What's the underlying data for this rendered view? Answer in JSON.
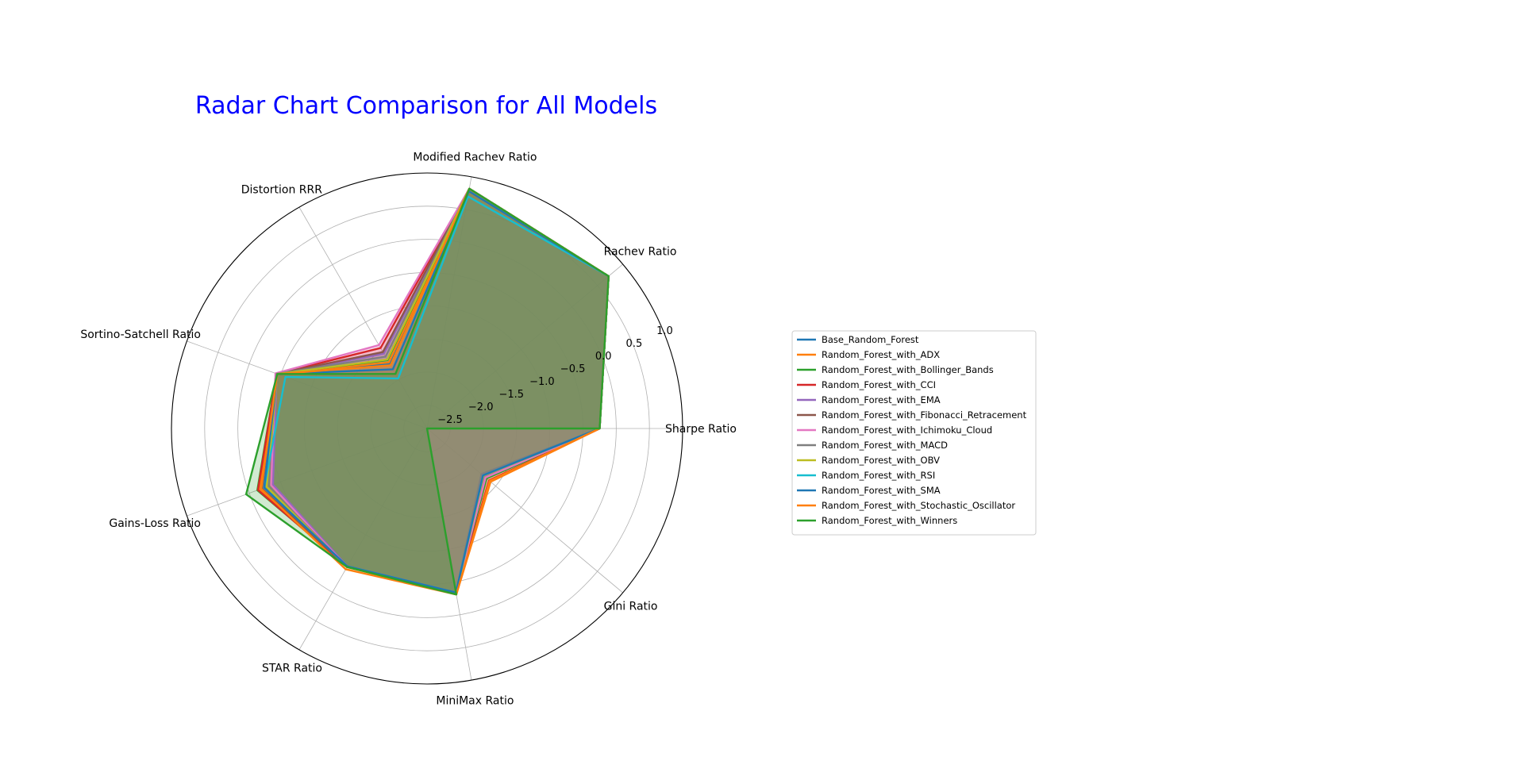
{
  "chart_data": {
    "type": "radar",
    "title": "Radar Chart Comparison for All Models",
    "title_color": "#0000ff",
    "axes": [
      "Sharpe Ratio",
      "Rachev Ratio",
      "Modified Rachev Ratio",
      "Distortion RRR",
      "Sortino-Satchell Ratio",
      "Gains-Loss Ratio",
      "STAR Ratio",
      "MiniMax Ratio",
      "Gini Ratio"
    ],
    "radial_ticks": [
      -2.5,
      -2.0,
      -1.5,
      -1.0,
      -0.5,
      0.0,
      0.5,
      1.0
    ],
    "radial_tick_labels": [
      "−2.5",
      "−2.0",
      "−1.5",
      "−1.0",
      "−0.5",
      "0.0",
      "0.5",
      "1.0"
    ],
    "rlim": [
      -2.85,
      1.0
    ],
    "grid": true,
    "legend_position": "right",
    "series": [
      {
        "name": "Base_Random_Forest",
        "color": "#1f77b4",
        "values": [
          -0.25,
          0.72,
          0.82,
          -1.72,
          -0.45,
          -0.24,
          -0.45,
          -0.34,
          -1.75
        ]
      },
      {
        "name": "Random_Forest_with_ADX",
        "color": "#ff7f0e",
        "values": [
          -0.25,
          0.72,
          0.82,
          -1.7,
          -0.44,
          -0.17,
          -0.44,
          -0.31,
          -1.6
        ]
      },
      {
        "name": "Random_Forest_with_Bollinger_Bands",
        "color": "#2ca02c",
        "values": [
          -0.25,
          0.72,
          0.82,
          -1.66,
          -0.44,
          -0.13,
          -0.45,
          -0.33,
          -1.68
        ]
      },
      {
        "name": "Random_Forest_with_CCI",
        "color": "#d62728",
        "values": [
          -0.25,
          0.72,
          0.82,
          -1.45,
          -0.44,
          -0.14,
          -0.44,
          -0.33,
          -1.63
        ]
      },
      {
        "name": "Random_Forest_with_EMA",
        "color": "#9467bd",
        "values": [
          -0.25,
          0.72,
          0.82,
          -1.55,
          -0.44,
          -0.38,
          -0.45,
          -0.34,
          -1.72
        ]
      },
      {
        "name": "Random_Forest_with_Fibonacci_Retracement",
        "color": "#8c564b",
        "values": [
          -0.25,
          0.72,
          0.82,
          -1.52,
          -0.44,
          -0.2,
          -0.44,
          -0.33,
          -1.7
        ]
      },
      {
        "name": "Random_Forest_with_Ichimoku_Cloud",
        "color": "#e377c2",
        "values": [
          -0.25,
          0.72,
          0.82,
          -1.4,
          -0.42,
          -0.35,
          -0.44,
          -0.33,
          -1.7
        ]
      },
      {
        "name": "Random_Forest_with_MACD",
        "color": "#7f7f7f",
        "values": [
          -0.25,
          0.72,
          0.82,
          -1.6,
          -0.44,
          -0.3,
          -0.44,
          -0.34,
          -1.78
        ]
      },
      {
        "name": "Random_Forest_with_OBV",
        "color": "#bcbd22",
        "values": [
          -0.25,
          0.72,
          0.82,
          -1.65,
          -0.45,
          -0.28,
          -0.44,
          -0.33,
          -1.74
        ]
      },
      {
        "name": "Random_Forest_with_RSI",
        "color": "#17becf",
        "values": [
          -0.25,
          0.72,
          0.7,
          -1.98,
          -0.58,
          -0.24,
          -0.45,
          -0.34,
          -1.75
        ]
      },
      {
        "name": "Random_Forest_with_SMA",
        "color": "#1f77b4",
        "values": [
          -0.25,
          0.72,
          0.78,
          -1.82,
          -0.45,
          -0.24,
          -0.45,
          -0.34,
          -1.75
        ]
      },
      {
        "name": "Random_Forest_with_Stochastic_Oscillator",
        "color": "#ff7f0e",
        "values": [
          -0.25,
          0.72,
          0.82,
          -1.75,
          -0.45,
          -0.19,
          -0.4,
          -0.31,
          -1.62
        ]
      },
      {
        "name": "Random_Forest_with_Winners",
        "color": "#2ca02c",
        "values": [
          -0.25,
          0.72,
          0.82,
          -1.9,
          -0.45,
          0.05,
          -0.44,
          -0.31,
          -2.85
        ]
      }
    ]
  }
}
